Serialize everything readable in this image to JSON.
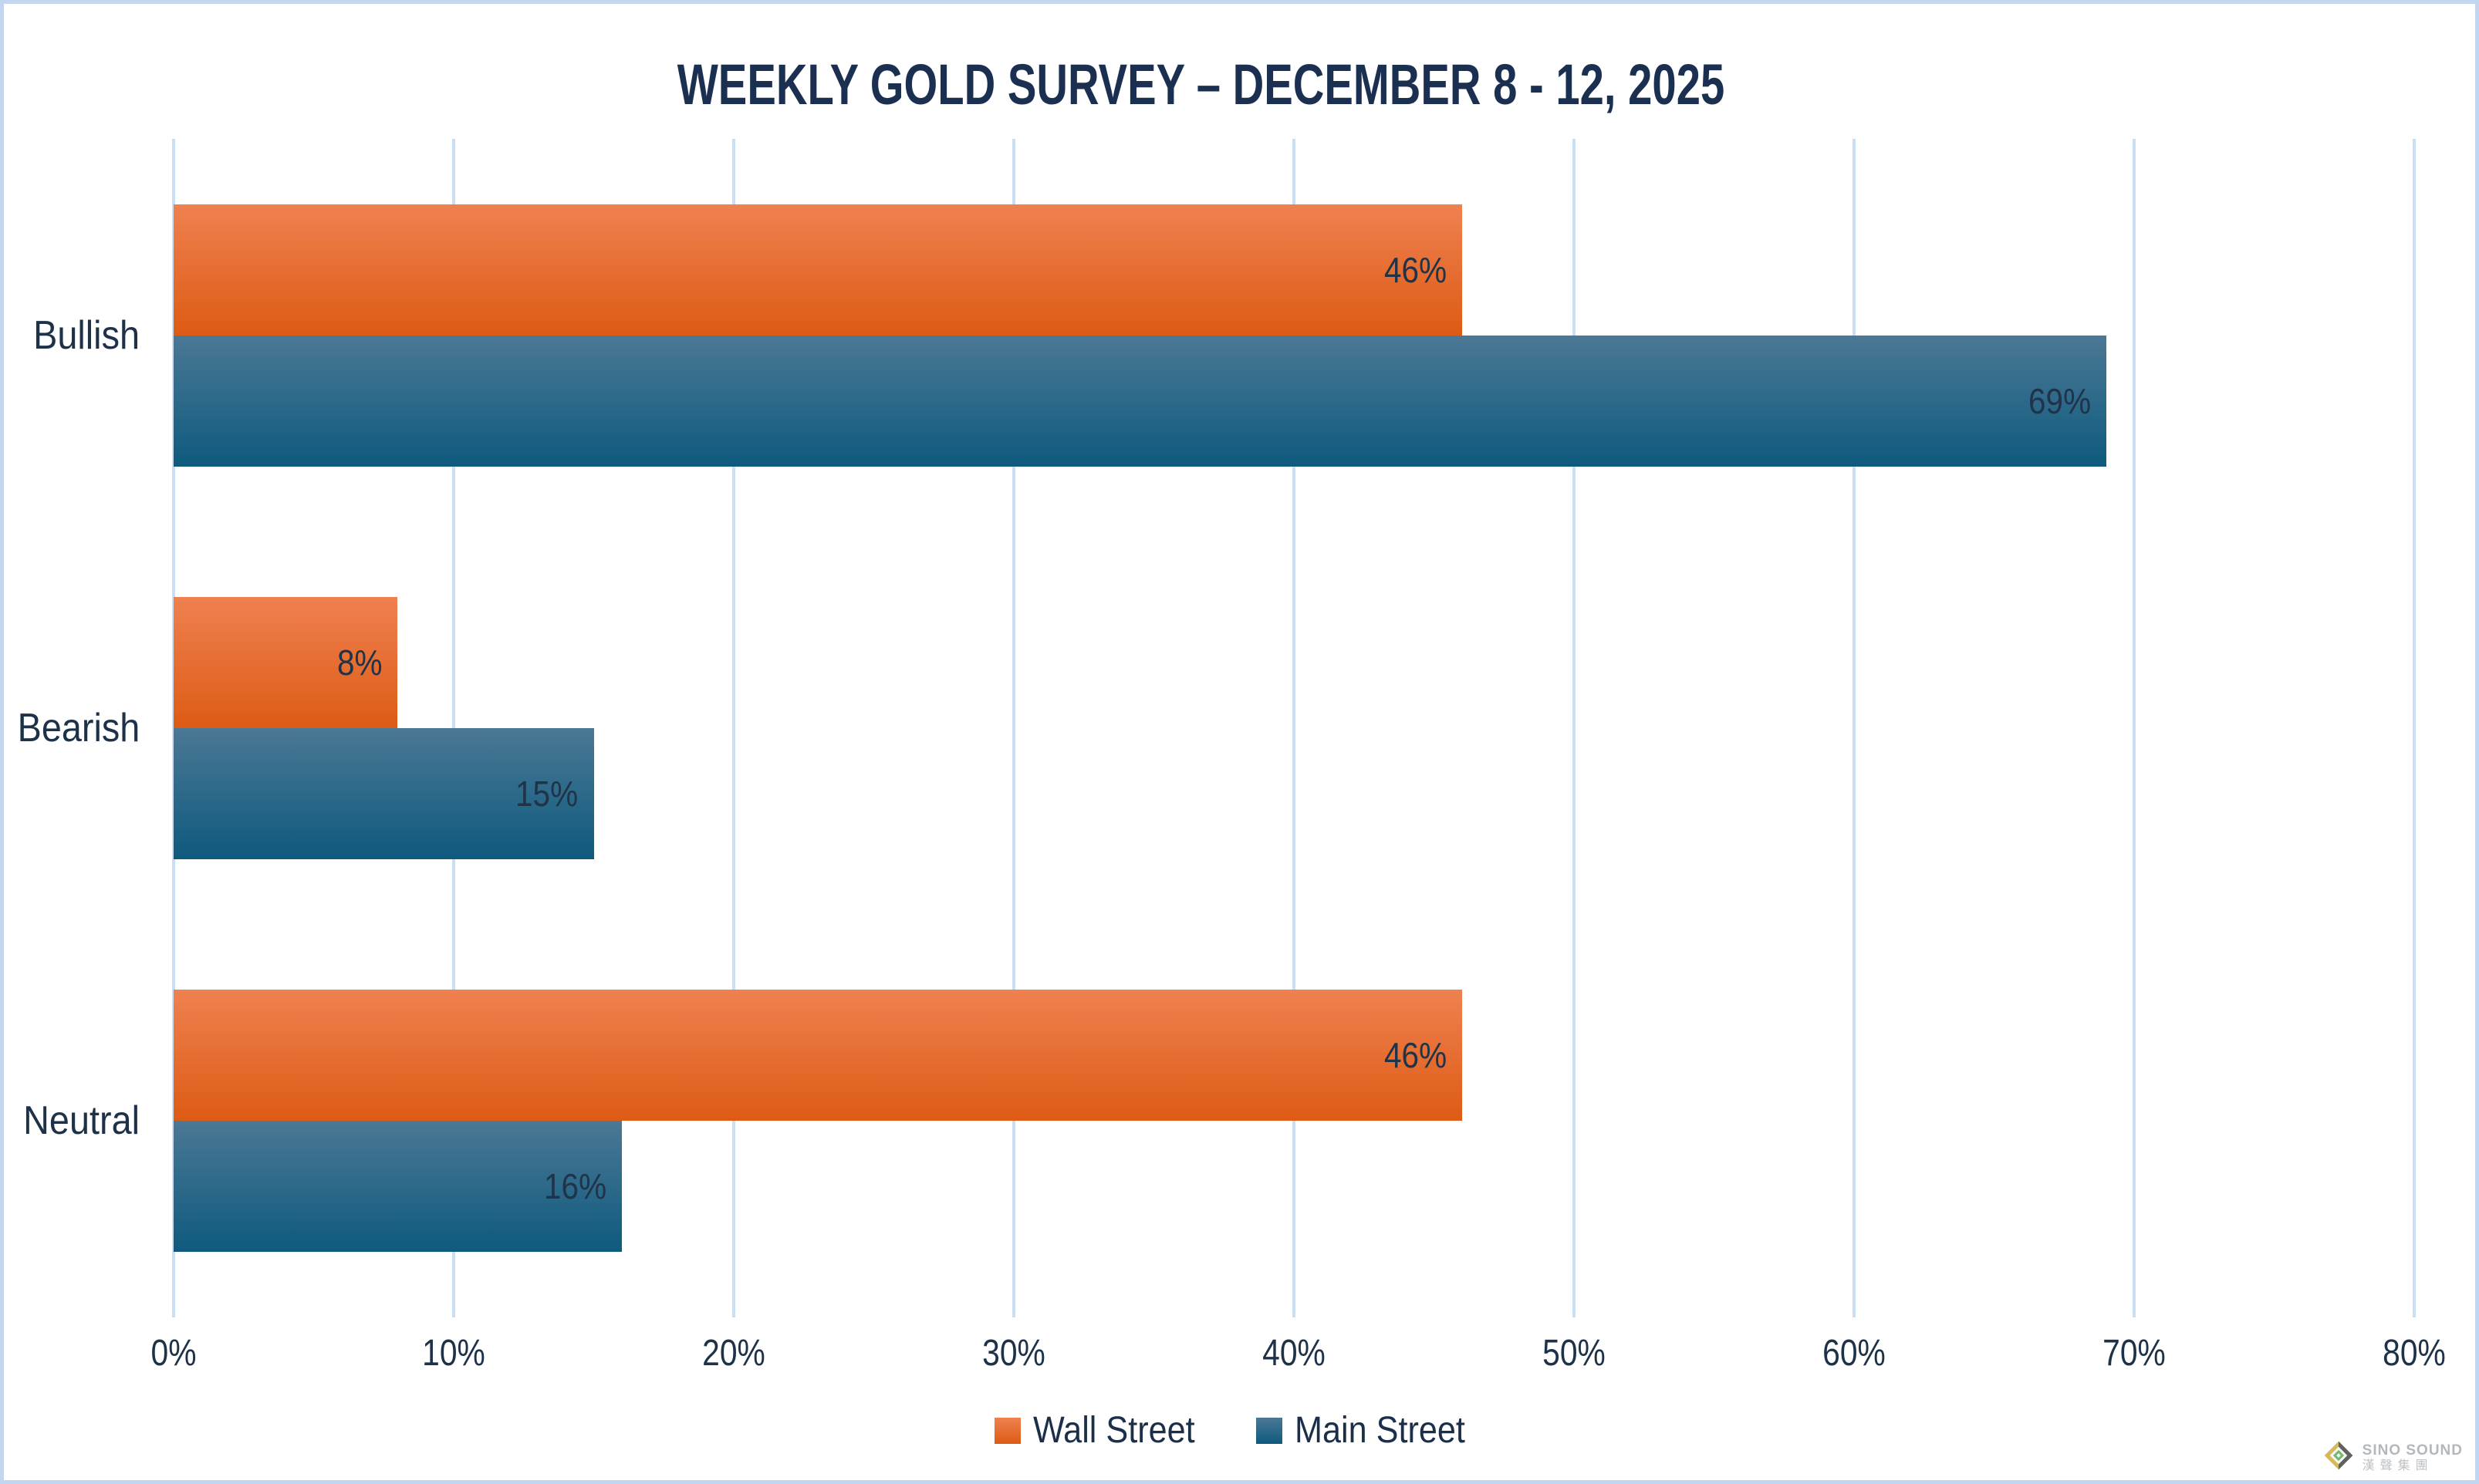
{
  "chart_data": {
    "type": "bar",
    "orientation": "horizontal",
    "title": "WEEKLY GOLD SURVEY – DECEMBER 8 - 12, 2025",
    "categories": [
      "Bullish",
      "Bearish",
      "Neutral"
    ],
    "series": [
      {
        "name": "Wall Street",
        "values": [
          46,
          8,
          46
        ],
        "color_top": "#ef8150",
        "color_bottom": "#dd5b14"
      },
      {
        "name": "Main Street",
        "values": [
          69,
          15,
          16
        ],
        "color_top": "#4b7895",
        "color_bottom": "#0e5a7e"
      }
    ],
    "value_suffix": "%",
    "data_labels": [
      [
        "46%",
        "8%",
        "46%"
      ],
      [
        "69%",
        "15%",
        "16%"
      ]
    ],
    "xlim": [
      0,
      80
    ],
    "x_tick_labels": [
      "0%",
      "10%",
      "20%",
      "30%",
      "40%",
      "50%",
      "60%",
      "70%",
      "80%"
    ],
    "grid": true,
    "legend_position": "bottom"
  },
  "colors": {
    "frame_border": "#c2d7ef",
    "gridline": "#cbdff4",
    "title_text": "#1b3051",
    "axis_text": "#1d3249",
    "data_label_text": "#203349"
  },
  "watermark": {
    "line1": "SINO SOUND",
    "line2": "漢聲集團"
  }
}
